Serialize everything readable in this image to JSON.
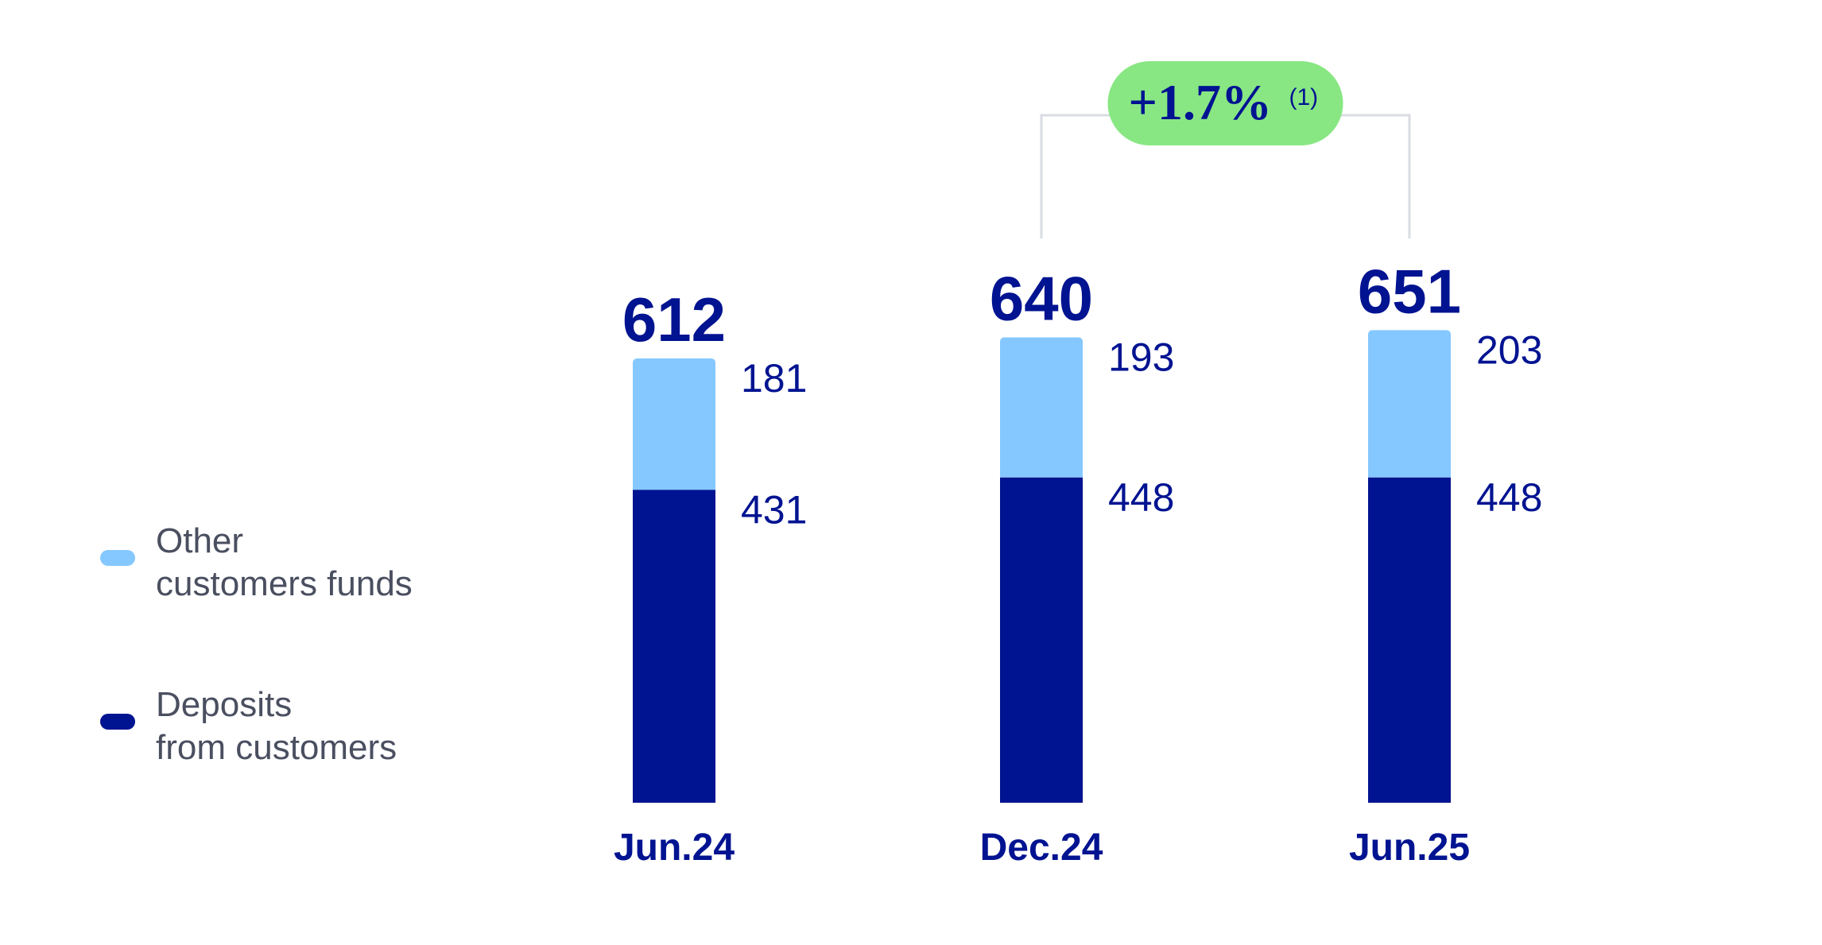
{
  "chart_data": {
    "type": "bar",
    "stacked": true,
    "categories": [
      "Jun.24",
      "Dec.24",
      "Jun.25"
    ],
    "series": [
      {
        "name": "Deposits from customers",
        "legend_lines": [
          "Deposits",
          "from customers"
        ],
        "values": [
          431,
          448,
          448
        ],
        "color": "#001391"
      },
      {
        "name": "Other customers funds",
        "legend_lines": [
          "Other",
          "customers funds"
        ],
        "values": [
          181,
          193,
          203
        ],
        "color": "#85c8ff"
      }
    ],
    "totals": [
      612,
      640,
      651
    ],
    "annotation": {
      "text": "+1.7%",
      "footnote": "(1)",
      "from": "Dec.24",
      "to": "Jun.25",
      "color": "#88e783"
    },
    "legend_position": "left",
    "grid": false,
    "ylim": [
      0,
      651
    ]
  },
  "colors": {
    "label_text": "#001391",
    "legend_text": "#4a4f60",
    "bracket": "#d9dce3"
  }
}
